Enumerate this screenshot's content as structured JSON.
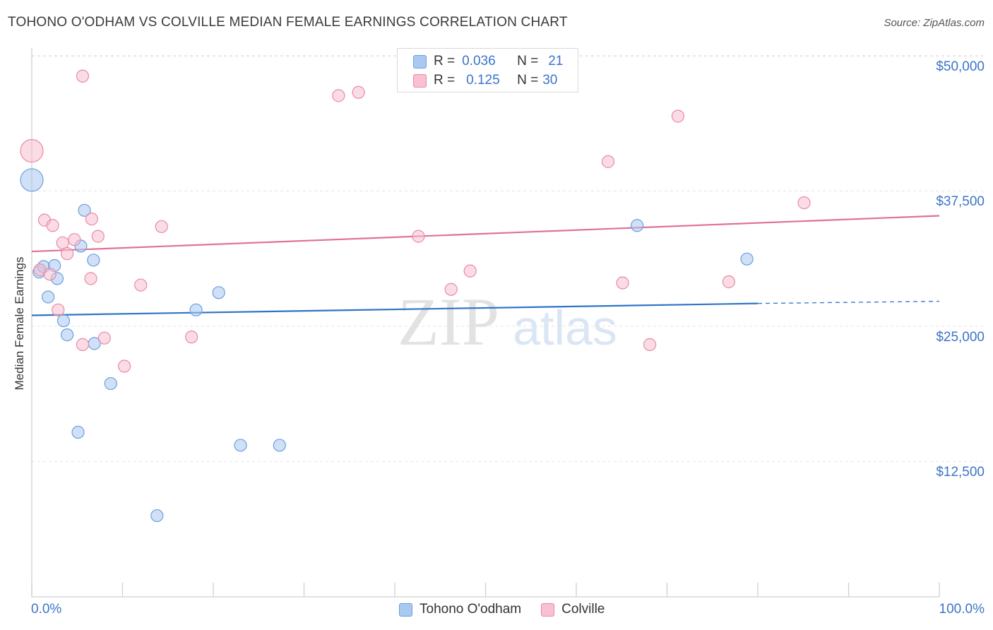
{
  "title": "TOHONO O'ODHAM VS COLVILLE MEDIAN FEMALE EARNINGS CORRELATION CHART",
  "source": "Source: ZipAtlas.com",
  "watermark": {
    "zip": "ZIP",
    "atlas": "atlas"
  },
  "legend": {
    "r_label": "R =",
    "n_label": "N =",
    "rows": [
      {
        "r": "0.036",
        "n": "21",
        "color": "#a9c9f0",
        "edge": "#6a9fe0"
      },
      {
        "r": "0.125",
        "n": "30",
        "color": "#f8c0d0",
        "edge": "#e88aa6"
      }
    ]
  },
  "bottom_legend": [
    "Tohono O'odham",
    "Colville"
  ],
  "chart_data": {
    "type": "scatter",
    "title": "TOHONO O'ODHAM VS COLVILLE MEDIAN FEMALE EARNINGS CORRELATION CHART",
    "xlabel": "",
    "ylabel": "Median Female Earnings",
    "xlim": [
      0,
      100
    ],
    "ylim": [
      0,
      52000
    ],
    "x_tick_labels": [
      "0.0%",
      "100.0%"
    ],
    "y_ticks": [
      {
        "value": 12500,
        "label": "$12,500"
      },
      {
        "value": 25000,
        "label": "$25,000"
      },
      {
        "value": 37500,
        "label": "$37,500"
      },
      {
        "value": 50000,
        "label": "$50,000"
      }
    ],
    "series": [
      {
        "name": "Tohono O'odham",
        "color": "#a9c9f0",
        "edge": "#6a9fe0",
        "line_color": "#2f74c8",
        "trend": {
          "x0": 0,
          "y0": 26000,
          "x1": 80,
          "y1": 27100,
          "dash_to": 100,
          "dash_y": 27300
        },
        "points": [
          {
            "x": 0.0,
            "y": 38500,
            "big": true
          },
          {
            "x": 0.8,
            "y": 30000
          },
          {
            "x": 1.3,
            "y": 30500
          },
          {
            "x": 1.8,
            "y": 27700
          },
          {
            "x": 2.5,
            "y": 30600
          },
          {
            "x": 2.8,
            "y": 29400
          },
          {
            "x": 3.5,
            "y": 25500
          },
          {
            "x": 3.9,
            "y": 24200
          },
          {
            "x": 5.1,
            "y": 15200
          },
          {
            "x": 5.4,
            "y": 32400
          },
          {
            "x": 5.8,
            "y": 35700
          },
          {
            "x": 6.8,
            "y": 31100
          },
          {
            "x": 6.9,
            "y": 23400
          },
          {
            "x": 8.7,
            "y": 19700
          },
          {
            "x": 13.8,
            "y": 7500
          },
          {
            "x": 18.1,
            "y": 26500
          },
          {
            "x": 20.6,
            "y": 28100
          },
          {
            "x": 23.0,
            "y": 14000
          },
          {
            "x": 27.3,
            "y": 14000
          },
          {
            "x": 66.7,
            "y": 34300
          },
          {
            "x": 78.8,
            "y": 31200
          }
        ]
      },
      {
        "name": "Colville",
        "color": "#f8c0d0",
        "edge": "#e88aa6",
        "line_color": "#e0709a",
        "trend": {
          "x0": 0,
          "y0": 31900,
          "x1": 100,
          "y1": 35200
        },
        "points": [
          {
            "x": 0.0,
            "y": 41200,
            "big": true
          },
          {
            "x": 0.9,
            "y": 30200
          },
          {
            "x": 1.4,
            "y": 34800
          },
          {
            "x": 2.0,
            "y": 29800
          },
          {
            "x": 2.3,
            "y": 34300
          },
          {
            "x": 2.9,
            "y": 26500
          },
          {
            "x": 3.4,
            "y": 32700
          },
          {
            "x": 3.9,
            "y": 31700
          },
          {
            "x": 4.7,
            "y": 33000
          },
          {
            "x": 5.6,
            "y": 23300
          },
          {
            "x": 5.6,
            "y": 48100
          },
          {
            "x": 6.5,
            "y": 29400
          },
          {
            "x": 6.6,
            "y": 34900
          },
          {
            "x": 7.3,
            "y": 33300
          },
          {
            "x": 8.0,
            "y": 23900
          },
          {
            "x": 10.2,
            "y": 21300
          },
          {
            "x": 12.0,
            "y": 28800
          },
          {
            "x": 14.3,
            "y": 34200
          },
          {
            "x": 17.6,
            "y": 24000
          },
          {
            "x": 33.8,
            "y": 46300
          },
          {
            "x": 36.0,
            "y": 46600
          },
          {
            "x": 42.6,
            "y": 33300
          },
          {
            "x": 46.2,
            "y": 28400
          },
          {
            "x": 48.3,
            "y": 30100
          },
          {
            "x": 63.5,
            "y": 40200
          },
          {
            "x": 65.1,
            "y": 29000
          },
          {
            "x": 68.1,
            "y": 23300
          },
          {
            "x": 71.2,
            "y": 44400
          },
          {
            "x": 76.8,
            "y": 29100
          },
          {
            "x": 85.1,
            "y": 36400
          }
        ]
      }
    ]
  }
}
